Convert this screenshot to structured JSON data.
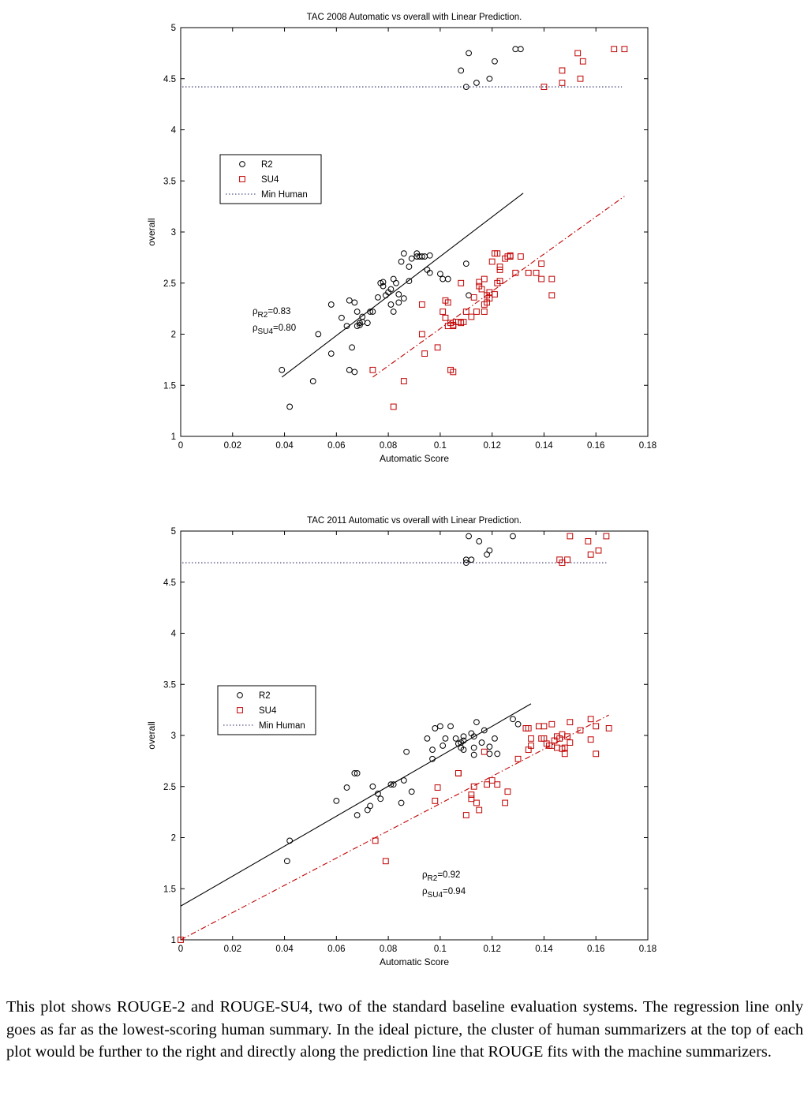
{
  "chart_data": [
    {
      "type": "scatter",
      "title": "TAC 2008 Automatic vs overall with Linear Prediction.",
      "xlabel": "Automatic Score",
      "ylabel": "overall",
      "xlim": [
        0,
        0.18
      ],
      "ylim": [
        1,
        5
      ],
      "x_ticks": [
        "0",
        "0.02",
        "0.04",
        "0.06",
        "0.08",
        "0.1",
        "0.12",
        "0.14",
        "0.16",
        "0.18"
      ],
      "y_ticks": [
        "1",
        "1.5",
        "2",
        "2.5",
        "3",
        "3.5",
        "4",
        "4.5",
        "5"
      ],
      "legend": {
        "placement": "upper-left",
        "entries": [
          "R2",
          "SU4",
          "Min Human"
        ]
      },
      "annotation": {
        "position": "left",
        "rho_r2": "=0.83",
        "rho_su4": "=0.80"
      },
      "min_human": {
        "value": 4.42,
        "xmin": 0,
        "xmax": 0.17
      },
      "series": [
        {
          "name": "R2",
          "marker": "circle",
          "color": "#000000",
          "fit": {
            "x1": 0.039,
            "y1": 1.58,
            "x2": 0.132,
            "y2": 3.38
          },
          "points": [
            [
              0.039,
              1.65
            ],
            [
              0.042,
              1.29
            ],
            [
              0.051,
              1.54
            ],
            [
              0.053,
              2.0
            ],
            [
              0.058,
              1.81
            ],
            [
              0.058,
              2.29
            ],
            [
              0.062,
              2.16
            ],
            [
              0.064,
              2.08
            ],
            [
              0.065,
              2.33
            ],
            [
              0.065,
              1.65
            ],
            [
              0.066,
              1.87
            ],
            [
              0.067,
              1.63
            ],
            [
              0.067,
              2.31
            ],
            [
              0.068,
              2.08
            ],
            [
              0.068,
              2.22
            ],
            [
              0.069,
              2.11
            ],
            [
              0.069,
              2.09
            ],
            [
              0.07,
              2.12
            ],
            [
              0.07,
              2.17
            ],
            [
              0.072,
              2.11
            ],
            [
              0.073,
              2.22
            ],
            [
              0.074,
              2.22
            ],
            [
              0.076,
              2.36
            ],
            [
              0.077,
              2.5
            ],
            [
              0.078,
              2.47
            ],
            [
              0.078,
              2.51
            ],
            [
              0.079,
              2.38
            ],
            [
              0.08,
              2.41
            ],
            [
              0.081,
              2.44
            ],
            [
              0.081,
              2.29
            ],
            [
              0.082,
              2.54
            ],
            [
              0.082,
              2.22
            ],
            [
              0.083,
              2.5
            ],
            [
              0.084,
              2.31
            ],
            [
              0.084,
              2.39
            ],
            [
              0.085,
              2.71
            ],
            [
              0.086,
              2.35
            ],
            [
              0.086,
              2.79
            ],
            [
              0.088,
              2.52
            ],
            [
              0.088,
              2.66
            ],
            [
              0.089,
              2.74
            ],
            [
              0.091,
              2.79
            ],
            [
              0.091,
              2.76
            ],
            [
              0.092,
              2.76
            ],
            [
              0.093,
              2.76
            ],
            [
              0.094,
              2.76
            ],
            [
              0.095,
              2.63
            ],
            [
              0.096,
              2.77
            ],
            [
              0.096,
              2.6
            ],
            [
              0.1,
              2.59
            ],
            [
              0.101,
              2.54
            ],
            [
              0.103,
              2.54
            ],
            [
              0.108,
              4.58
            ],
            [
              0.11,
              2.69
            ],
            [
              0.11,
              4.42
            ],
            [
              0.111,
              4.75
            ],
            [
              0.111,
              2.38
            ],
            [
              0.114,
              4.46
            ],
            [
              0.119,
              4.5
            ],
            [
              0.121,
              4.67
            ],
            [
              0.129,
              4.79
            ],
            [
              0.131,
              4.79
            ]
          ]
        },
        {
          "name": "SU4",
          "marker": "square",
          "color": "#c00000",
          "fit": {
            "x1": 0.074,
            "y1": 1.58,
            "x2": 0.171,
            "y2": 3.35
          },
          "points": [
            [
              0.074,
              1.65
            ],
            [
              0.082,
              1.29
            ],
            [
              0.086,
              1.54
            ],
            [
              0.093,
              2.0
            ],
            [
              0.093,
              2.29
            ],
            [
              0.094,
              1.81
            ],
            [
              0.099,
              1.87
            ],
            [
              0.101,
              2.22
            ],
            [
              0.102,
              2.33
            ],
            [
              0.102,
              2.16
            ],
            [
              0.103,
              2.08
            ],
            [
              0.103,
              2.31
            ],
            [
              0.104,
              1.65
            ],
            [
              0.104,
              2.11
            ],
            [
              0.105,
              2.08
            ],
            [
              0.105,
              1.63
            ],
            [
              0.105,
              2.09
            ],
            [
              0.106,
              2.12
            ],
            [
              0.107,
              2.12
            ],
            [
              0.108,
              2.11
            ],
            [
              0.108,
              2.5
            ],
            [
              0.109,
              2.12
            ],
            [
              0.11,
              2.22
            ],
            [
              0.112,
              2.17
            ],
            [
              0.113,
              2.36
            ],
            [
              0.114,
              2.22
            ],
            [
              0.115,
              2.47
            ],
            [
              0.115,
              2.51
            ],
            [
              0.116,
              2.44
            ],
            [
              0.117,
              2.54
            ],
            [
              0.117,
              2.22
            ],
            [
              0.117,
              2.29
            ],
            [
              0.118,
              2.38
            ],
            [
              0.118,
              2.31
            ],
            [
              0.119,
              2.41
            ],
            [
              0.119,
              2.35
            ],
            [
              0.12,
              2.71
            ],
            [
              0.121,
              2.79
            ],
            [
              0.121,
              2.39
            ],
            [
              0.122,
              2.5
            ],
            [
              0.122,
              2.79
            ],
            [
              0.123,
              2.52
            ],
            [
              0.123,
              2.66
            ],
            [
              0.123,
              2.63
            ],
            [
              0.125,
              2.74
            ],
            [
              0.126,
              2.76
            ],
            [
              0.127,
              2.76
            ],
            [
              0.127,
              2.77
            ],
            [
              0.129,
              2.6
            ],
            [
              0.131,
              2.76
            ],
            [
              0.134,
              2.6
            ],
            [
              0.137,
              2.6
            ],
            [
              0.139,
              2.69
            ],
            [
              0.139,
              2.54
            ],
            [
              0.14,
              4.42
            ],
            [
              0.143,
              2.54
            ],
            [
              0.143,
              2.38
            ],
            [
              0.147,
              4.58
            ],
            [
              0.147,
              4.46
            ],
            [
              0.153,
              4.75
            ],
            [
              0.154,
              4.5
            ],
            [
              0.155,
              4.67
            ],
            [
              0.167,
              4.79
            ],
            [
              0.171,
              4.79
            ]
          ]
        }
      ]
    },
    {
      "type": "scatter",
      "title": "TAC 2011 Automatic vs overall with Linear Prediction.",
      "xlabel": "Automatic Score",
      "ylabel": "overall",
      "xlim": [
        0,
        0.18
      ],
      "ylim": [
        1,
        5
      ],
      "x_ticks": [
        "0",
        "0.02",
        "0.04",
        "0.06",
        "0.08",
        "0.1",
        "0.12",
        "0.14",
        "0.16",
        "0.18"
      ],
      "y_ticks": [
        "1",
        "1.5",
        "2",
        "2.5",
        "3",
        "3.5",
        "4",
        "4.5",
        "5"
      ],
      "legend": {
        "placement": "middle-left",
        "entries": [
          "R2",
          "SU4",
          "Min Human"
        ]
      },
      "annotation": {
        "position": "lower-center",
        "rho_r2": "=0.92",
        "rho_su4": "=0.94"
      },
      "min_human": {
        "value": 4.69,
        "xmin": 0,
        "xmax": 0.164
      },
      "series": [
        {
          "name": "R2",
          "marker": "circle",
          "color": "#000000",
          "fit": {
            "x1": 0.0,
            "y1": 1.33,
            "x2": 0.135,
            "y2": 3.31
          },
          "points": [
            [
              0.041,
              1.77
            ],
            [
              0.042,
              1.97
            ],
            [
              0.06,
              2.36
            ],
            [
              0.064,
              2.49
            ],
            [
              0.067,
              2.63
            ],
            [
              0.068,
              2.63
            ],
            [
              0.068,
              2.22
            ],
            [
              0.072,
              2.27
            ],
            [
              0.073,
              2.31
            ],
            [
              0.074,
              2.5
            ],
            [
              0.076,
              2.43
            ],
            [
              0.077,
              2.38
            ],
            [
              0.081,
              2.52
            ],
            [
              0.082,
              2.52
            ],
            [
              0.085,
              2.34
            ],
            [
              0.086,
              2.56
            ],
            [
              0.087,
              2.84
            ],
            [
              0.089,
              2.45
            ],
            [
              0.095,
              2.97
            ],
            [
              0.097,
              2.77
            ],
            [
              0.097,
              2.86
            ],
            [
              0.098,
              3.07
            ],
            [
              0.1,
              3.09
            ],
            [
              0.101,
              2.9
            ],
            [
              0.102,
              2.97
            ],
            [
              0.104,
              3.09
            ],
            [
              0.106,
              2.97
            ],
            [
              0.107,
              2.92
            ],
            [
              0.108,
              2.93
            ],
            [
              0.108,
              2.88
            ],
            [
              0.109,
              2.99
            ],
            [
              0.109,
              2.95
            ],
            [
              0.109,
              2.86
            ],
            [
              0.11,
              4.69
            ],
            [
              0.11,
              4.72
            ],
            [
              0.111,
              4.95
            ],
            [
              0.112,
              4.72
            ],
            [
              0.112,
              3.02
            ],
            [
              0.113,
              2.81
            ],
            [
              0.113,
              2.99
            ],
            [
              0.113,
              2.88
            ],
            [
              0.114,
              3.13
            ],
            [
              0.115,
              4.9
            ],
            [
              0.116,
              2.93
            ],
            [
              0.117,
              3.05
            ],
            [
              0.118,
              4.77
            ],
            [
              0.119,
              4.81
            ],
            [
              0.119,
              2.82
            ],
            [
              0.119,
              2.89
            ],
            [
              0.121,
              2.97
            ],
            [
              0.122,
              2.82
            ],
            [
              0.128,
              4.95
            ],
            [
              0.128,
              3.16
            ],
            [
              0.13,
              3.11
            ]
          ]
        },
        {
          "name": "SU4",
          "marker": "square",
          "color": "#c00000",
          "fit": {
            "x1": 0.0,
            "y1": 1.0,
            "x2": 0.165,
            "y2": 3.2
          },
          "points": [
            [
              0.0,
              1.0
            ],
            [
              0.075,
              1.97
            ],
            [
              0.079,
              1.77
            ],
            [
              0.098,
              2.36
            ],
            [
              0.099,
              2.49
            ],
            [
              0.107,
              2.63
            ],
            [
              0.107,
              2.63
            ],
            [
              0.11,
              2.22
            ],
            [
              0.112,
              2.42
            ],
            [
              0.112,
              2.38
            ],
            [
              0.113,
              2.5
            ],
            [
              0.114,
              2.34
            ],
            [
              0.115,
              2.27
            ],
            [
              0.117,
              2.84
            ],
            [
              0.118,
              2.52
            ],
            [
              0.12,
              2.56
            ],
            [
              0.122,
              2.52
            ],
            [
              0.125,
              2.34
            ],
            [
              0.126,
              2.45
            ],
            [
              0.13,
              2.77
            ],
            [
              0.133,
              3.07
            ],
            [
              0.134,
              2.86
            ],
            [
              0.134,
              3.07
            ],
            [
              0.135,
              2.97
            ],
            [
              0.135,
              2.9
            ],
            [
              0.138,
              3.09
            ],
            [
              0.139,
              2.97
            ],
            [
              0.14,
              3.09
            ],
            [
              0.14,
              2.97
            ],
            [
              0.141,
              2.92
            ],
            [
              0.142,
              2.9
            ],
            [
              0.143,
              3.11
            ],
            [
              0.143,
              2.9
            ],
            [
              0.144,
              2.95
            ],
            [
              0.145,
              2.88
            ],
            [
              0.145,
              2.99
            ],
            [
              0.146,
              2.97
            ],
            [
              0.146,
              4.72
            ],
            [
              0.147,
              4.69
            ],
            [
              0.147,
              2.87
            ],
            [
              0.147,
              3.01
            ],
            [
              0.148,
              2.82
            ],
            [
              0.148,
              2.88
            ],
            [
              0.149,
              4.72
            ],
            [
              0.149,
              2.99
            ],
            [
              0.15,
              4.95
            ],
            [
              0.15,
              2.93
            ],
            [
              0.15,
              3.13
            ],
            [
              0.154,
              3.05
            ],
            [
              0.157,
              4.9
            ],
            [
              0.158,
              4.77
            ],
            [
              0.158,
              2.96
            ],
            [
              0.158,
              3.16
            ],
            [
              0.16,
              3.09
            ],
            [
              0.16,
              2.82
            ],
            [
              0.161,
              4.81
            ],
            [
              0.164,
              4.95
            ],
            [
              0.165,
              3.07
            ]
          ]
        }
      ]
    }
  ],
  "caption": "This plot shows ROUGE-2 and ROUGE-SU4, two of the standard baseline evaluation systems. The regression line only goes as far as the lowest-scoring human summary. In the ideal picture, the cluster of human summarizers at the top of each plot would be further to the right and directly along the prediction line that ROUGE fits with the machine summarizers.",
  "colors": {
    "r2": "#000000",
    "su4": "#c00000"
  }
}
